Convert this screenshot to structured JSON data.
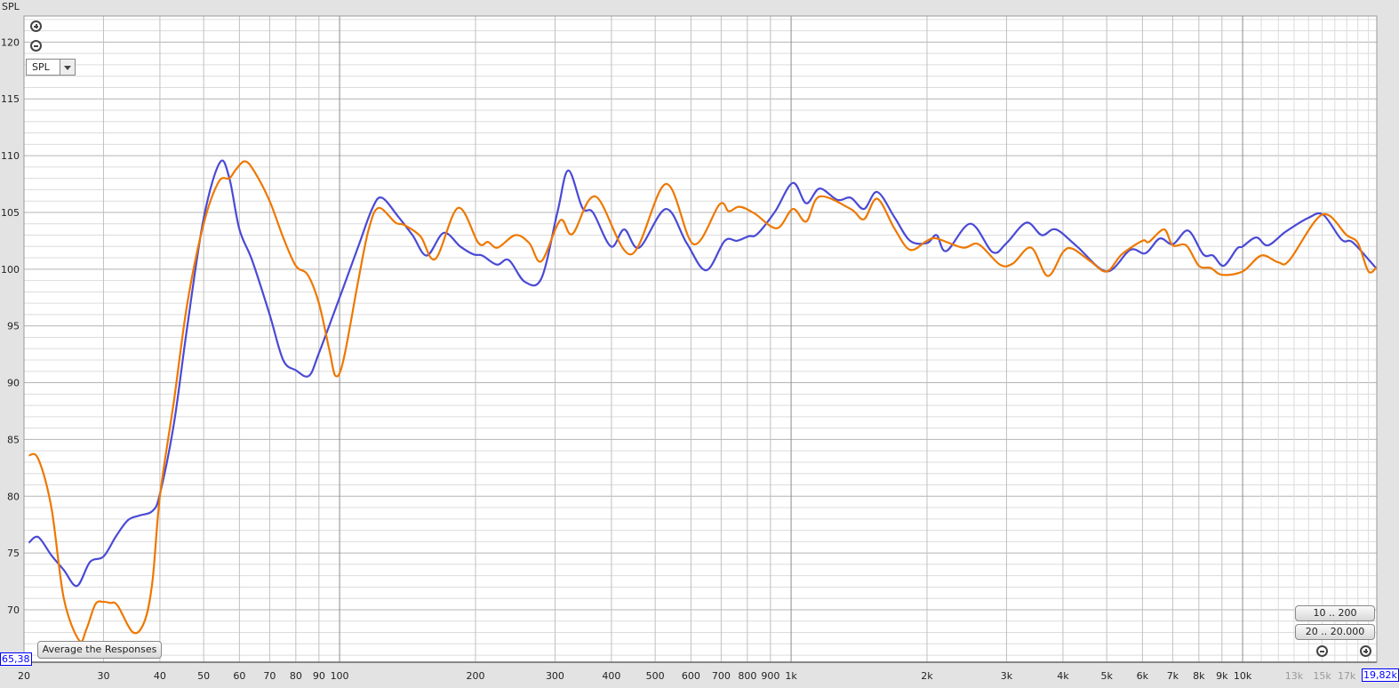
{
  "chart_data": {
    "type": "line",
    "title": "",
    "ylabel": "SPL",
    "xlabel": "",
    "x_scale": "log",
    "xlim": [
      20,
      19820
    ],
    "ylim": [
      65.38,
      122.3
    ],
    "grid": true,
    "x_ticks": [
      "20",
      "30",
      "40",
      "50",
      "60",
      "70",
      "80",
      "90",
      "100",
      "200",
      "300",
      "400",
      "500",
      "600",
      "700",
      "800",
      "900",
      "1k",
      "2k",
      "3k",
      "4k",
      "5k",
      "6k",
      "7k",
      "8k",
      "9k",
      "10k",
      "13k",
      "15k",
      "17k"
    ],
    "x_tick_values": [
      20,
      30,
      40,
      50,
      60,
      70,
      80,
      90,
      100,
      200,
      300,
      400,
      500,
      600,
      700,
      800,
      900,
      1000,
      2000,
      3000,
      4000,
      5000,
      6000,
      7000,
      8000,
      9000,
      10000,
      13000,
      15000,
      17000
    ],
    "y_ticks": [
      "70",
      "75",
      "80",
      "85",
      "90",
      "95",
      "100",
      "105",
      "110",
      "115",
      "120"
    ],
    "y_tick_values": [
      70,
      75,
      80,
      85,
      90,
      95,
      100,
      105,
      110,
      115,
      120
    ],
    "series": [
      {
        "color": "#4a4ad6",
        "points": [
          [
            20.5,
            75.9
          ],
          [
            21.5,
            76.4
          ],
          [
            23,
            74.8
          ],
          [
            24.5,
            73.5
          ],
          [
            26.2,
            72.1
          ],
          [
            28,
            74.2
          ],
          [
            30,
            74.7
          ],
          [
            32,
            76.5
          ],
          [
            34,
            77.9
          ],
          [
            36,
            78.3
          ],
          [
            38.5,
            78.7
          ],
          [
            40,
            80.2
          ],
          [
            43,
            86.5
          ],
          [
            46,
            95
          ],
          [
            50,
            104.5
          ],
          [
            54.3,
            109.4
          ],
          [
            57,
            108
          ],
          [
            60,
            103.5
          ],
          [
            64,
            100.8
          ],
          [
            70,
            96
          ],
          [
            75,
            92
          ],
          [
            80,
            91.1
          ],
          [
            85.5,
            90.6
          ],
          [
            90,
            92.6
          ],
          [
            100,
            97.5
          ],
          [
            110,
            102
          ],
          [
            118,
            105.3
          ],
          [
            124,
            106.3
          ],
          [
            135,
            104.6
          ],
          [
            145,
            103
          ],
          [
            156,
            101.2
          ],
          [
            170,
            103.2
          ],
          [
            185,
            102
          ],
          [
            198,
            101.3
          ],
          [
            207,
            101.2
          ],
          [
            223,
            100.4
          ],
          [
            237,
            100.8
          ],
          [
            257,
            98.9
          ],
          [
            280,
            99.2
          ],
          [
            304,
            105.1
          ],
          [
            321,
            108.7
          ],
          [
            345,
            105.4
          ],
          [
            364,
            105
          ],
          [
            399,
            102
          ],
          [
            427,
            103.5
          ],
          [
            461,
            101.9
          ],
          [
            528,
            105.3
          ],
          [
            587,
            102.3
          ],
          [
            648,
            99.9
          ],
          [
            713,
            102.5
          ],
          [
            759,
            102.5
          ],
          [
            805,
            102.9
          ],
          [
            842,
            103.1
          ],
          [
            922,
            105.1
          ],
          [
            1009,
            107.6
          ],
          [
            1080,
            105.8
          ],
          [
            1156,
            107.1
          ],
          [
            1266,
            106.1
          ],
          [
            1355,
            106.3
          ],
          [
            1450,
            105.3
          ],
          [
            1552,
            106.8
          ],
          [
            1698,
            104.5
          ],
          [
            1834,
            102.5
          ],
          [
            2000,
            102.3
          ],
          [
            2100,
            103
          ],
          [
            2207,
            101.6
          ],
          [
            2496,
            104
          ],
          [
            2795,
            101.5
          ],
          [
            3000,
            102.3
          ],
          [
            3320,
            104.1
          ],
          [
            3590,
            103
          ],
          [
            3857,
            103.5
          ],
          [
            4298,
            102
          ],
          [
            5000,
            99.8
          ],
          [
            5637,
            101.7
          ],
          [
            6093,
            101.4
          ],
          [
            6551,
            102.7
          ],
          [
            7010,
            102.2
          ],
          [
            7575,
            103.4
          ],
          [
            8180,
            101.3
          ],
          [
            8600,
            101.2
          ],
          [
            9080,
            100.3
          ],
          [
            9710,
            101.8
          ],
          [
            10000,
            102
          ],
          [
            10720,
            102.8
          ],
          [
            11370,
            102.1
          ],
          [
            12450,
            103.3
          ],
          [
            13960,
            104.5
          ],
          [
            15070,
            104.8
          ],
          [
            16560,
            102.6
          ],
          [
            17490,
            102.4
          ],
          [
            19150,
            100.7
          ],
          [
            19820,
            100
          ]
        ]
      },
      {
        "color": "#ee7800",
        "points": [
          [
            20.5,
            83.6
          ],
          [
            21.5,
            83.3
          ],
          [
            23,
            79
          ],
          [
            24.5,
            71
          ],
          [
            26.5,
            67.3
          ],
          [
            27.5,
            68.3
          ],
          [
            28.8,
            70.5
          ],
          [
            30,
            70.7
          ],
          [
            31,
            70.6
          ],
          [
            32.2,
            70.4
          ],
          [
            34.9,
            68
          ],
          [
            37,
            69
          ],
          [
            38.5,
            72.5
          ],
          [
            40,
            80
          ],
          [
            43,
            88.5
          ],
          [
            46,
            97
          ],
          [
            50,
            104
          ],
          [
            54,
            107.7
          ],
          [
            57,
            108
          ],
          [
            59,
            108.8
          ],
          [
            61.8,
            109.5
          ],
          [
            65,
            108.5
          ],
          [
            70,
            106
          ],
          [
            75,
            102.8
          ],
          [
            80,
            100.3
          ],
          [
            85,
            99.5
          ],
          [
            90,
            97
          ],
          [
            95,
            92.8
          ],
          [
            98,
            90.6
          ],
          [
            102,
            92
          ],
          [
            110,
            99
          ],
          [
            116,
            103.5
          ],
          [
            122,
            105.4
          ],
          [
            133,
            104.1
          ],
          [
            139,
            103.9
          ],
          [
            151,
            102.9
          ],
          [
            163,
            100.9
          ],
          [
            183,
            105.4
          ],
          [
            203,
            102.3
          ],
          [
            213,
            102.4
          ],
          [
            224,
            101.9
          ],
          [
            245,
            103
          ],
          [
            263,
            102.3
          ],
          [
            280,
            100.7
          ],
          [
            308,
            104.3
          ],
          [
            328,
            103.1
          ],
          [
            369,
            106.4
          ],
          [
            442,
            101.3
          ],
          [
            528,
            107.5
          ],
          [
            608,
            102.2
          ],
          [
            694,
            105.7
          ],
          [
            728,
            105.1
          ],
          [
            769,
            105.5
          ],
          [
            830,
            104.9
          ],
          [
            930,
            103.6
          ],
          [
            1009,
            105.3
          ],
          [
            1080,
            104.2
          ],
          [
            1156,
            106.4
          ],
          [
            1355,
            105.3
          ],
          [
            1450,
            104.4
          ],
          [
            1552,
            106.2
          ],
          [
            1698,
            103.5
          ],
          [
            1834,
            101.7
          ],
          [
            2000,
            102.5
          ],
          [
            2100,
            102.7
          ],
          [
            2400,
            101.9
          ],
          [
            2600,
            102.2
          ],
          [
            2900,
            100.4
          ],
          [
            3100,
            100.5
          ],
          [
            3400,
            101.9
          ],
          [
            3700,
            99.4
          ],
          [
            4000,
            101.5
          ],
          [
            4200,
            101.8
          ],
          [
            4600,
            100.7
          ],
          [
            5000,
            99.8
          ],
          [
            5400,
            101.3
          ],
          [
            6000,
            102.5
          ],
          [
            6200,
            102.4
          ],
          [
            6700,
            103.5
          ],
          [
            7000,
            102.1
          ],
          [
            7500,
            102.1
          ],
          [
            8000,
            100.3
          ],
          [
            8500,
            100.1
          ],
          [
            9000,
            99.5
          ],
          [
            10000,
            99.8
          ],
          [
            11000,
            101.2
          ],
          [
            12000,
            100.6
          ],
          [
            12700,
            100.8
          ],
          [
            15000,
            104.8
          ],
          [
            17000,
            103
          ],
          [
            18000,
            102.3
          ],
          [
            19000,
            99.8
          ],
          [
            19820,
            100.2
          ]
        ]
      }
    ]
  },
  "controls": {
    "mode_select": "SPL",
    "average_button": "Average the Responses",
    "range_button_1": "10 .. 200",
    "range_button_2": "20 .. 20.000"
  },
  "cursor": {
    "y_readout": "65,38",
    "x_readout": "19,82k"
  }
}
